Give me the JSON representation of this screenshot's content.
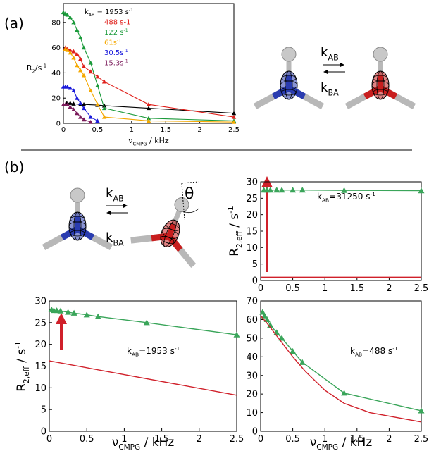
{
  "panel_labels": [
    "(a)",
    "(b)"
  ],
  "schemes": [
    {
      "k_ab": [
        {
          "text": "k"
        },
        {
          "text": "AB",
          "shift": "sub"
        }
      ],
      "k_ba": [
        {
          "text": "k"
        },
        {
          "text": "BA",
          "shift": "sub"
        }
      ]
    },
    {
      "k_ab": [
        {
          "text": "k"
        },
        {
          "text": "AB",
          "shift": "sub"
        }
      ],
      "k_ba": [
        {
          "text": "k"
        },
        {
          "text": "BA",
          "shift": "sub"
        }
      ],
      "angle": "θ"
    }
  ],
  "chart_data": [
    {
      "type": "line",
      "xlabel": [
        {
          "text": "ν"
        },
        {
          "text": "CMPG",
          "shift": "sub"
        },
        {
          "text": " / kHz"
        }
      ],
      "ylabel": [
        {
          "text": "R"
        },
        {
          "text": "2",
          "shift": "sub"
        },
        {
          "text": "/s"
        },
        {
          "text": "-1",
          "shift": "sup"
        }
      ],
      "xlim": [
        0,
        2.5
      ],
      "ylim": [
        0,
        95
      ],
      "xticks": [
        0,
        0.5,
        1,
        1.5,
        2,
        2.5
      ],
      "yticks": [
        0,
        20,
        40,
        60,
        80
      ],
      "series": [
        {
          "name": [
            {
              "text": "k"
            },
            {
              "text": "AB",
              "shift": "sub"
            },
            {
              "text": " = 1953 s"
            },
            {
              "text": "-1",
              "shift": "sup"
            }
          ],
          "color": "#000000",
          "marker": "triangle",
          "x": [
            0.05,
            0.1,
            0.15,
            0.25,
            0.3,
            0.5,
            0.6,
            1.25,
            2.5
          ],
          "values": [
            16,
            16,
            15.5,
            15,
            15,
            14.5,
            14,
            12,
            8
          ]
        },
        {
          "name": [
            {
              "text": "488 s-1"
            }
          ],
          "color": "#e0201b",
          "marker": "triangle",
          "x": [
            0.03,
            0.06,
            0.1,
            0.15,
            0.2,
            0.25,
            0.3,
            0.4,
            0.5,
            0.6,
            1.25,
            2.5
          ],
          "values": [
            60,
            59,
            58,
            57,
            55,
            51,
            45,
            41,
            37,
            33,
            15,
            5
          ]
        },
        {
          "name": [
            {
              "text": "122 s"
            },
            {
              "text": "-1",
              "shift": "sup"
            }
          ],
          "color": "#1a9a3a",
          "marker": "triangle",
          "x": [
            0,
            0.03,
            0.06,
            0.1,
            0.15,
            0.2,
            0.25,
            0.3,
            0.4,
            0.5,
            0.6,
            1.25,
            2.5
          ],
          "values": [
            88,
            87,
            86,
            84,
            80,
            74,
            68,
            60,
            48,
            30,
            12,
            4,
            2
          ]
        },
        {
          "name": [
            {
              "text": "61s"
            },
            {
              "text": "-1",
              "shift": "sup"
            }
          ],
          "color": "#f5a800",
          "marker": "triangle",
          "x": [
            0.03,
            0.06,
            0.1,
            0.15,
            0.2,
            0.25,
            0.3,
            0.4,
            0.5,
            0.6,
            1.25,
            2.5
          ],
          "values": [
            59,
            58,
            56,
            52,
            46,
            42,
            38,
            26,
            15,
            5,
            2,
            1
          ]
        },
        {
          "name": [
            {
              "text": "30.5s"
            },
            {
              "text": "-1",
              "shift": "sup"
            }
          ],
          "color": "#1a1adb",
          "marker": "triangle",
          "x": [
            0,
            0.03,
            0.06,
            0.1,
            0.15,
            0.2,
            0.25,
            0.3,
            0.4,
            0.5
          ],
          "values": [
            29,
            29,
            29,
            28,
            26,
            20,
            16,
            12,
            5,
            2
          ]
        },
        {
          "name": [
            {
              "text": "15.3s"
            },
            {
              "text": "-1",
              "shift": "sup"
            }
          ],
          "color": "#7a1a5a",
          "marker": "triangle",
          "x": [
            0,
            0.03,
            0.06,
            0.1,
            0.15,
            0.2,
            0.25,
            0.3,
            0.4
          ],
          "values": [
            15,
            15,
            15,
            13,
            11,
            8,
            5,
            3,
            1
          ]
        }
      ]
    },
    {
      "type": "line",
      "ylabel": [
        {
          "text": "R"
        },
        {
          "text": "2,eff",
          "shift": "sub"
        },
        {
          "text": " / s"
        },
        {
          "text": "-1",
          "shift": "sup"
        }
      ],
      "annotation": [
        {
          "text": "k"
        },
        {
          "text": "AB",
          "shift": "sub"
        },
        {
          "text": "=31250 s"
        },
        {
          "text": "-1",
          "shift": "sup"
        }
      ],
      "xlim": [
        0,
        2.5
      ],
      "ylim": [
        0,
        30
      ],
      "xticks": [
        0,
        0.5,
        1,
        1.5,
        2,
        2.5
      ],
      "yticks": [
        0,
        5,
        10,
        15,
        20,
        25,
        30
      ],
      "series": [
        {
          "color": "#3aa55a",
          "marker": "triangle",
          "x": [
            0.05,
            0.1,
            0.15,
            0.25,
            0.33,
            0.5,
            0.65,
            1.3,
            2.5
          ],
          "values": [
            27.5,
            27.5,
            27.5,
            27.5,
            27.5,
            27.5,
            27.5,
            27.4,
            27.3
          ]
        },
        {
          "color": "#d0202a",
          "x": [
            0,
            2.5
          ],
          "values": [
            1,
            1
          ]
        }
      ]
    },
    {
      "type": "line",
      "xlabel": [
        {
          "text": "ν"
        },
        {
          "text": "CMPG",
          "shift": "sub"
        },
        {
          "text": " / kHz"
        }
      ],
      "ylabel": [
        {
          "text": "R"
        },
        {
          "text": "2,eff",
          "shift": "sub"
        },
        {
          "text": " / s"
        },
        {
          "text": "-1",
          "shift": "sup"
        }
      ],
      "annotation": [
        {
          "text": "k"
        },
        {
          "text": "AB",
          "shift": "sub"
        },
        {
          "text": "=1953 s"
        },
        {
          "text": "-1",
          "shift": "sup"
        }
      ],
      "xlim": [
        0,
        2.5
      ],
      "ylim": [
        0,
        30
      ],
      "xticks": [
        0,
        0.5,
        1,
        1.5,
        2,
        2.5
      ],
      "yticks": [
        0,
        5,
        10,
        15,
        20,
        25,
        30
      ],
      "series": [
        {
          "color": "#3aa55a",
          "marker": "triangle",
          "x": [
            0.03,
            0.06,
            0.1,
            0.15,
            0.25,
            0.33,
            0.5,
            0.65,
            1.3,
            2.5
          ],
          "values": [
            28,
            27.8,
            27.8,
            27.7,
            27.4,
            27.2,
            26.8,
            26.4,
            25,
            22.2
          ]
        },
        {
          "color": "#d0202a",
          "x": [
            0,
            2.5
          ],
          "values": [
            16.2,
            8.3
          ]
        }
      ]
    },
    {
      "type": "line",
      "xlabel": [
        {
          "text": "ν"
        },
        {
          "text": "CMPG",
          "shift": "sub"
        },
        {
          "text": " / kHz"
        }
      ],
      "annotation": [
        {
          "text": "k"
        },
        {
          "text": "AB",
          "shift": "sub"
        },
        {
          "text": "=488 s"
        },
        {
          "text": "-1",
          "shift": "sup"
        }
      ],
      "xlim": [
        0,
        2.5
      ],
      "ylim": [
        0,
        70
      ],
      "xticks": [
        0,
        0.5,
        1,
        1.5,
        2,
        2.5
      ],
      "yticks": [
        0,
        10,
        20,
        30,
        40,
        50,
        60,
        70
      ],
      "series": [
        {
          "color": "#3aa55a",
          "marker": "triangle",
          "x": [
            0.03,
            0.06,
            0.1,
            0.15,
            0.25,
            0.33,
            0.5,
            0.65,
            1.3,
            2.5
          ],
          "values": [
            64,
            62,
            60,
            57,
            53,
            50,
            43,
            37,
            20.5,
            11
          ]
        },
        {
          "color": "#d0202a",
          "x": [
            0,
            0.1,
            0.3,
            0.5,
            0.7,
            1,
            1.3,
            1.7,
            2.5
          ],
          "values": [
            62,
            58,
            49,
            40,
            32,
            22,
            15,
            10,
            5
          ]
        }
      ]
    }
  ]
}
